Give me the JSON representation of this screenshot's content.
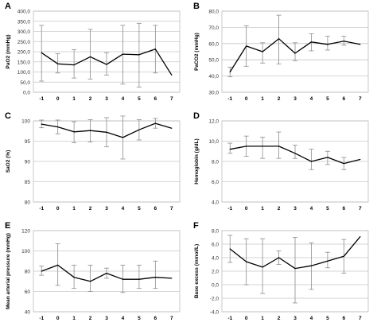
{
  "chart_data": [
    {
      "panel": "A",
      "type": "line",
      "ylabel": "PaO2 (mmHg)",
      "ylim": [
        0,
        400
      ],
      "yticks": [
        "0,0",
        "50,0",
        "100,0",
        "150,0",
        "200,0",
        "250,0",
        "300,0",
        "350,0",
        "400,0"
      ],
      "ytick_values": [
        0,
        50,
        100,
        150,
        200,
        250,
        300,
        350,
        400
      ],
      "x": [
        "-1",
        "0",
        "1",
        "2",
        "3",
        "4",
        "5",
        "6",
        "7"
      ],
      "values": [
        195,
        140,
        135,
        175,
        137,
        188,
        185,
        213,
        85
      ],
      "error_low": [
        55,
        95,
        70,
        65,
        85,
        40,
        25,
        95,
        null
      ],
      "error_high": [
        330,
        190,
        210,
        310,
        195,
        330,
        340,
        330,
        null
      ],
      "grid": true
    },
    {
      "panel": "B",
      "type": "line",
      "ylabel": "PaCO2 (mmHg)",
      "ylim": [
        30,
        80
      ],
      "yticks": [
        "30,0",
        "40,0",
        "50,0",
        "60,0",
        "70,0",
        "80,0"
      ],
      "ytick_values": [
        30,
        40,
        50,
        60,
        70,
        80
      ],
      "x": [
        "-1",
        "0",
        "1",
        "2",
        "3",
        "4",
        "5",
        "6",
        "7"
      ],
      "values": [
        42.5,
        58.5,
        55,
        63,
        54,
        61,
        59.5,
        61.5,
        59.5
      ],
      "error_low": [
        39.5,
        46,
        48,
        47.5,
        49.5,
        55.5,
        56,
        59,
        null
      ],
      "error_high": [
        45.5,
        71,
        60.5,
        77.5,
        60.5,
        66,
        64.5,
        64.5,
        null
      ],
      "grid": true
    },
    {
      "panel": "C",
      "type": "line",
      "ylabel": "SaO2 (%)",
      "ylim": [
        80,
        100
      ],
      "yticks": [
        "80",
        "85",
        "90",
        "95",
        "100"
      ],
      "ytick_values": [
        80,
        85,
        90,
        95,
        100
      ],
      "x": [
        "-1",
        "0",
        "1",
        "2",
        "3",
        "4",
        "5",
        "6",
        "7"
      ],
      "values": [
        99.2,
        98.5,
        97.3,
        97.6,
        97.2,
        95.9,
        97.8,
        99.4,
        98.2
      ],
      "error_low": [
        98.3,
        96.8,
        94.6,
        94.8,
        93.6,
        90.6,
        95.3,
        98.2,
        null
      ],
      "error_high": [
        100.2,
        100.2,
        99.8,
        100.3,
        100.8,
        101.2,
        100.3,
        100.6,
        null
      ],
      "grid": true
    },
    {
      "panel": "D",
      "type": "line",
      "ylabel": "Hemoglobin (g/dL)",
      "ylim": [
        4,
        12
      ],
      "yticks": [
        "4,0",
        "6,0",
        "8,0",
        "10,0",
        "12,0"
      ],
      "ytick_values": [
        4,
        6,
        8,
        10,
        12
      ],
      "x": [
        "-1",
        "0",
        "1",
        "2",
        "3",
        "4",
        "5",
        "6",
        "7"
      ],
      "values": [
        9.2,
        9.5,
        9.5,
        9.5,
        8.8,
        8.0,
        8.4,
        7.8,
        8.2
      ],
      "error_low": [
        8.8,
        8.5,
        8.3,
        8.3,
        8.3,
        7.2,
        7.7,
        7.2,
        null
      ],
      "error_high": [
        9.8,
        10.5,
        10.4,
        10.9,
        9.6,
        9.2,
        9.0,
        8.4,
        null
      ],
      "grid": true
    },
    {
      "panel": "E",
      "type": "line",
      "ylabel": "Mean arterial pressure (mmHg)",
      "ylim": [
        40,
        120
      ],
      "yticks": [
        "40",
        "60",
        "80",
        "100",
        "120"
      ],
      "ytick_values": [
        40,
        60,
        80,
        100,
        120
      ],
      "x": [
        "-1",
        "0",
        "1",
        "2",
        "3",
        "4",
        "5",
        "6",
        "7"
      ],
      "values": [
        80,
        86,
        74,
        70,
        78,
        72,
        72,
        74,
        73
      ],
      "error_low": [
        76,
        66,
        63,
        60,
        73,
        59,
        63,
        63,
        null
      ],
      "error_high": [
        85,
        107,
        86,
        86,
        83,
        86,
        86,
        90,
        null
      ],
      "grid": true
    },
    {
      "panel": "F",
      "type": "line",
      "ylabel": "Base excess (mmol/L)",
      "ylim": [
        -4,
        8
      ],
      "yticks": [
        "-4,0",
        "-2,0",
        "0,0",
        "2,0",
        "4,0",
        "6,0",
        "8,0"
      ],
      "ytick_values": [
        -4,
        -2,
        0,
        2,
        4,
        6,
        8
      ],
      "x": [
        "-1",
        "0",
        "1",
        "2",
        "3",
        "4",
        "5",
        "6",
        "7"
      ],
      "values": [
        5.3,
        3.4,
        2.6,
        4.0,
        2.4,
        2.8,
        3.5,
        4.2,
        7.1
      ],
      "error_low": [
        3.3,
        0.0,
        -1.3,
        3.0,
        -2.7,
        -0.7,
        2.5,
        1.7,
        null
      ],
      "error_high": [
        7.3,
        6.8,
        6.8,
        5.0,
        7.0,
        6.2,
        4.8,
        6.7,
        null
      ],
      "grid": true
    }
  ]
}
